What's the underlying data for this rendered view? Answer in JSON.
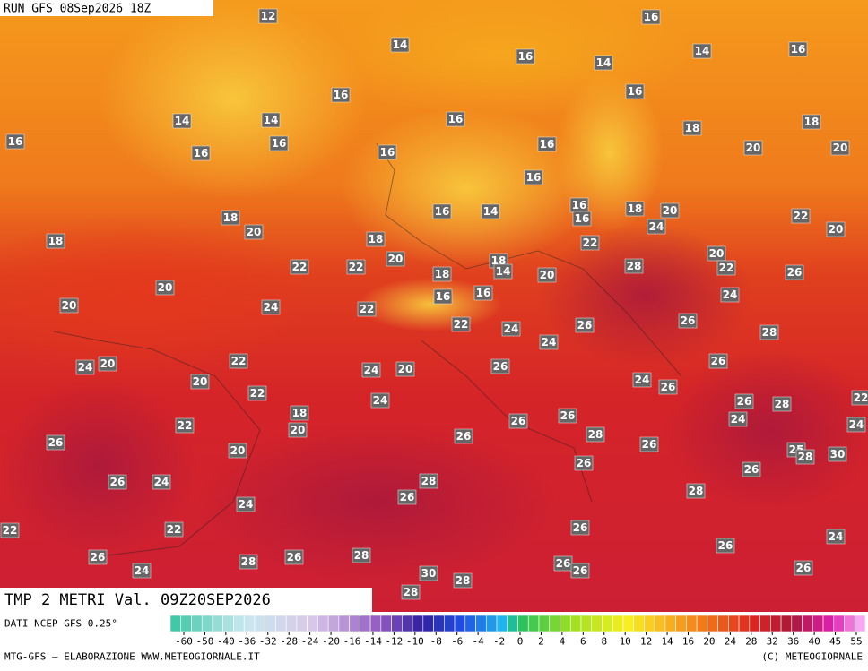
{
  "header": {
    "run": "RUN GFS 08Sep2026 18Z"
  },
  "title": "TMP 2 METRI Val. 09Z20SEP2026",
  "footer": {
    "source": "DATI NCEP GFS 0.25°",
    "credit": "MTG-GFS — ELABORAZIONE WWW.METEOGIORNALE.IT",
    "copyright": "(C) METEOGIORNALE"
  },
  "labels": [
    12,
    14,
    16,
    16,
    14,
    14,
    16,
    16,
    16,
    14,
    14,
    16,
    18,
    18,
    16,
    16,
    16,
    16,
    16,
    20,
    20,
    16,
    16,
    14,
    16,
    16,
    18,
    20,
    22,
    18,
    20,
    24,
    20,
    18,
    18,
    22,
    20,
    20,
    22,
    22,
    28,
    22,
    18,
    18,
    14,
    20,
    26,
    20,
    16,
    16,
    24,
    20,
    24,
    22,
    22,
    26,
    24,
    26,
    28,
    24,
    20,
    22,
    24,
    26,
    24,
    20,
    26,
    20,
    22,
    24,
    26,
    24,
    26,
    28,
    22,
    18,
    26,
    26,
    24,
    24,
    22,
    20,
    28,
    26,
    26,
    26,
    25,
    28,
    30,
    20,
    26,
    26,
    26,
    24,
    28,
    26,
    28,
    24,
    22,
    26,
    22,
    24,
    26,
    26,
    28,
    26,
    28,
    26,
    26,
    24,
    26,
    30,
    28,
    28
  ],
  "colorbar": {
    "ticks": [
      -60,
      -50,
      -40,
      -36,
      -32,
      -28,
      -24,
      -20,
      -16,
      -14,
      -12,
      -10,
      -8,
      -6,
      -4,
      -2,
      0,
      2,
      4,
      6,
      8,
      10,
      12,
      14,
      16,
      20,
      24,
      28,
      32,
      36,
      40,
      45,
      55
    ]
  }
}
